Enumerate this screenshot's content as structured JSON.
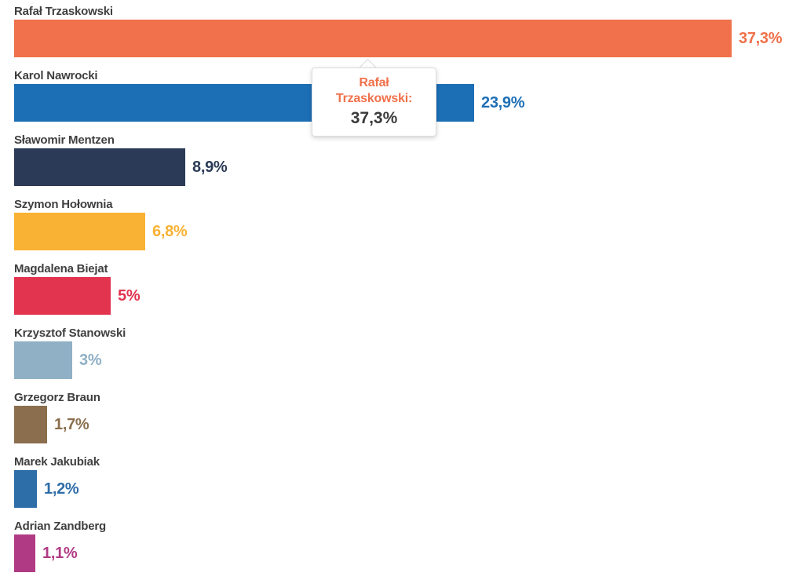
{
  "chart_data": {
    "type": "bar",
    "orientation": "horizontal",
    "title": "",
    "xlabel": "",
    "ylabel": "",
    "xlim": [
      0,
      40
    ],
    "grid": false,
    "legend": false,
    "categories": [
      "Rafał Trzaskowski",
      "Karol Nawrocki",
      "Sławomir Mentzen",
      "Szymon Hołownia",
      "Magdalena Biejat",
      "Krzysztof Stanowski",
      "Grzegorz Braun",
      "Marek Jakubiak",
      "Adrian Zandberg"
    ],
    "values": [
      37.3,
      23.9,
      8.9,
      6.8,
      5,
      3,
      1.7,
      1.2,
      1.1
    ],
    "value_labels": [
      "37,3%",
      "23,9%",
      "8,9%",
      "6,8%",
      "5%",
      "3%",
      "1,7%",
      "1,2%",
      "1,1%"
    ],
    "bar_colors": [
      "#F0714B",
      "#1D6FB5",
      "#2B3B57",
      "#F9B233",
      "#E2334F",
      "#8FB0C5",
      "#8A6E4D",
      "#2D6DA8",
      "#B13A84"
    ]
  },
  "tooltip": {
    "title": "Rafał Trzaskowski:",
    "value": "37,3%",
    "accent_color": "#F0714B"
  },
  "colors": {
    "category_label_text": "#3F3F3F",
    "background": "#FFFFFF"
  }
}
